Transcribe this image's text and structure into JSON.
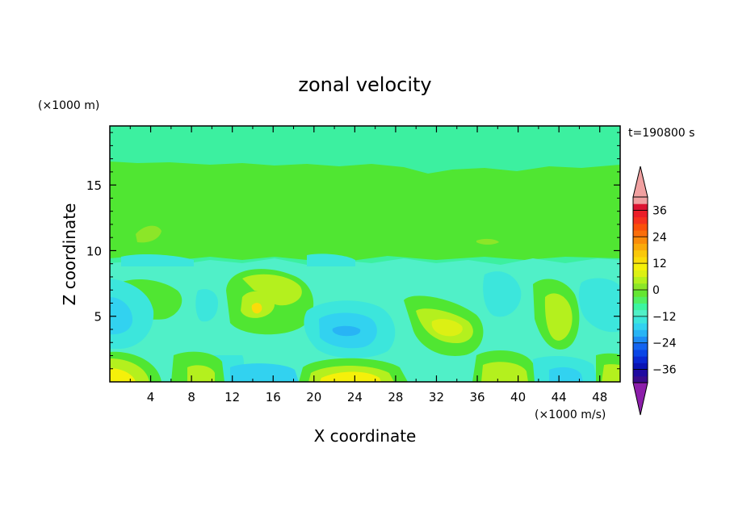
{
  "chart_data": {
    "type": "heatmap",
    "title": "zonal velocity",
    "xlabel": "X coordinate",
    "ylabel": "Z coordinate",
    "x_unit_note": "(×1000 m/s)",
    "y_unit_note": "(×1000 m)",
    "time_label": "t=190800 s",
    "xlim": [
      0,
      50
    ],
    "ylim": [
      0,
      19.5
    ],
    "x_ticks": [
      4,
      8,
      12,
      16,
      20,
      24,
      28,
      32,
      36,
      40,
      44,
      48
    ],
    "y_ticks": [
      5,
      10,
      15
    ],
    "x_tick_labels": [
      "4",
      "8",
      "12",
      "16",
      "20",
      "24",
      "28",
      "32",
      "36",
      "40",
      "44",
      "48"
    ],
    "y_tick_labels": [
      "5",
      "10",
      "15"
    ],
    "colorbar": {
      "levels": [
        -42,
        -39,
        -36,
        -33,
        -30,
        -27,
        -24,
        -21,
        -18,
        -15,
        -12,
        -9,
        -6,
        -3,
        0,
        3,
        6,
        9,
        12,
        15,
        18,
        21,
        24,
        27,
        30,
        33,
        36,
        39,
        42
      ],
      "colors": [
        "#3a0a8c",
        "#200aa0",
        "#0a14b4",
        "#0a28d2",
        "#0a46e6",
        "#1464f0",
        "#1e8cf5",
        "#28b4f5",
        "#32d2f0",
        "#3ce6dc",
        "#50f0c8",
        "#3cf5a0",
        "#50f064",
        "#64e632",
        "#8ce628",
        "#b4f01e",
        "#dcf014",
        "#f5f00a",
        "#fadc0a",
        "#fac80a",
        "#faaa0a",
        "#fa8c0a",
        "#fa6e0a",
        "#fa500a",
        "#f5321e",
        "#eb1e28",
        "#dc1432",
        "#f0a0a0"
      ],
      "under_color": "#8c1eaa",
      "over_color": "#f0a0a0",
      "tick_values": [
        36,
        24,
        12,
        0,
        -12,
        -24,
        -36
      ],
      "tick_labels": [
        "36",
        "24",
        "12",
        "0",
        "−12",
        "−24",
        "−36"
      ]
    },
    "field_description_regions": [
      {
        "x": [
          0,
          50
        ],
        "z": [
          17,
          19.5
        ],
        "value": 0
      },
      {
        "x": [
          0,
          50
        ],
        "z": [
          10,
          17
        ],
        "value": 3
      },
      {
        "x": [
          0,
          3
        ],
        "z": [
          0,
          1.5
        ],
        "value": 18
      },
      {
        "x": [
          20,
          27
        ],
        "z": [
          0,
          1.2
        ],
        "value": 18
      },
      {
        "x": [
          22,
          24
        ],
        "z": [
          3.5,
          4.3
        ],
        "value": -20
      },
      {
        "x": [
          13.5,
          15
        ],
        "z": [
          5.2,
          6
        ],
        "value": 10
      }
    ]
  }
}
